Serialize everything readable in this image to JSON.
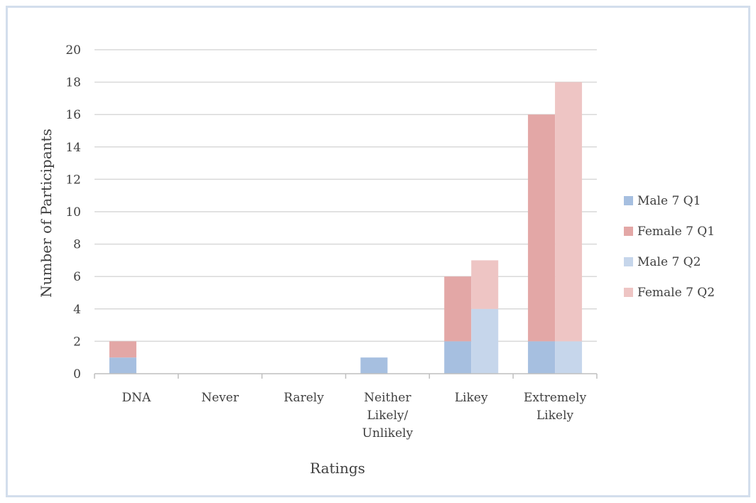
{
  "chart_data": {
    "type": "bar",
    "stacked": true,
    "categories": [
      [
        "DNA"
      ],
      [
        "Never"
      ],
      [
        "Rarely"
      ],
      [
        "Neither",
        "Likely/",
        "Unlikely"
      ],
      [
        "Likey"
      ],
      [
        "Extremely",
        "Likely"
      ]
    ],
    "series": [
      {
        "name": "Male 7 Q1",
        "values": [
          1,
          0,
          0,
          1,
          2,
          2
        ],
        "color": "#a6bfe0",
        "stack": "Q1"
      },
      {
        "name": "Female 7 Q1",
        "values": [
          1,
          0,
          0,
          0,
          4,
          14
        ],
        "color": "#e3a7a6",
        "stack": "Q1"
      },
      {
        "name": "Male 7 Q2",
        "values": [
          0,
          0,
          0,
          0,
          4,
          2
        ],
        "color": "#c6d6eb",
        "stack": "Q2"
      },
      {
        "name": "Female 7 Q2",
        "values": [
          0,
          0,
          0,
          0,
          3,
          16
        ],
        "color": "#eec5c4",
        "stack": "Q2"
      }
    ],
    "xlabel": "Ratings",
    "ylabel": "Number of Participants",
    "ylim": [
      0,
      20
    ],
    "yticks": [
      0,
      2,
      4,
      6,
      8,
      10,
      12,
      14,
      16,
      18,
      20
    ],
    "grid": true,
    "legend_position": "right"
  }
}
